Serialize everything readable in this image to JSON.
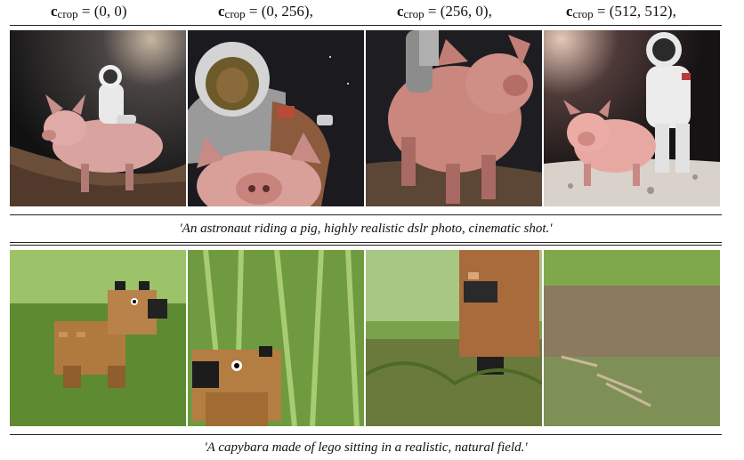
{
  "column_headers": [
    {
      "symbol": "c",
      "subscript": "crop",
      "value": "= (0, 0)"
    },
    {
      "symbol": "c",
      "subscript": "crop",
      "value": "= (0, 256),"
    },
    {
      "symbol": "c",
      "subscript": "crop",
      "value": "= (256, 0),"
    },
    {
      "symbol": "c",
      "subscript": "crop",
      "value": "= (512, 512),"
    }
  ],
  "rows": [
    {
      "caption": "'An astronaut riding a pig, highly realistic dslr photo, cinematic shot.'",
      "images": [
        "astronaut-pig-full",
        "astronaut-pig-cropped-top",
        "astronaut-pig-cropped-left",
        "astronaut-pig-cropped-both"
      ]
    },
    {
      "caption": "'A capybara made of lego sitting in a realistic, natural field.'",
      "images": [
        "lego-capybara-full",
        "lego-capybara-cropped-top",
        "lego-capybara-cropped-left",
        "lego-capybara-cropped-both"
      ]
    }
  ]
}
